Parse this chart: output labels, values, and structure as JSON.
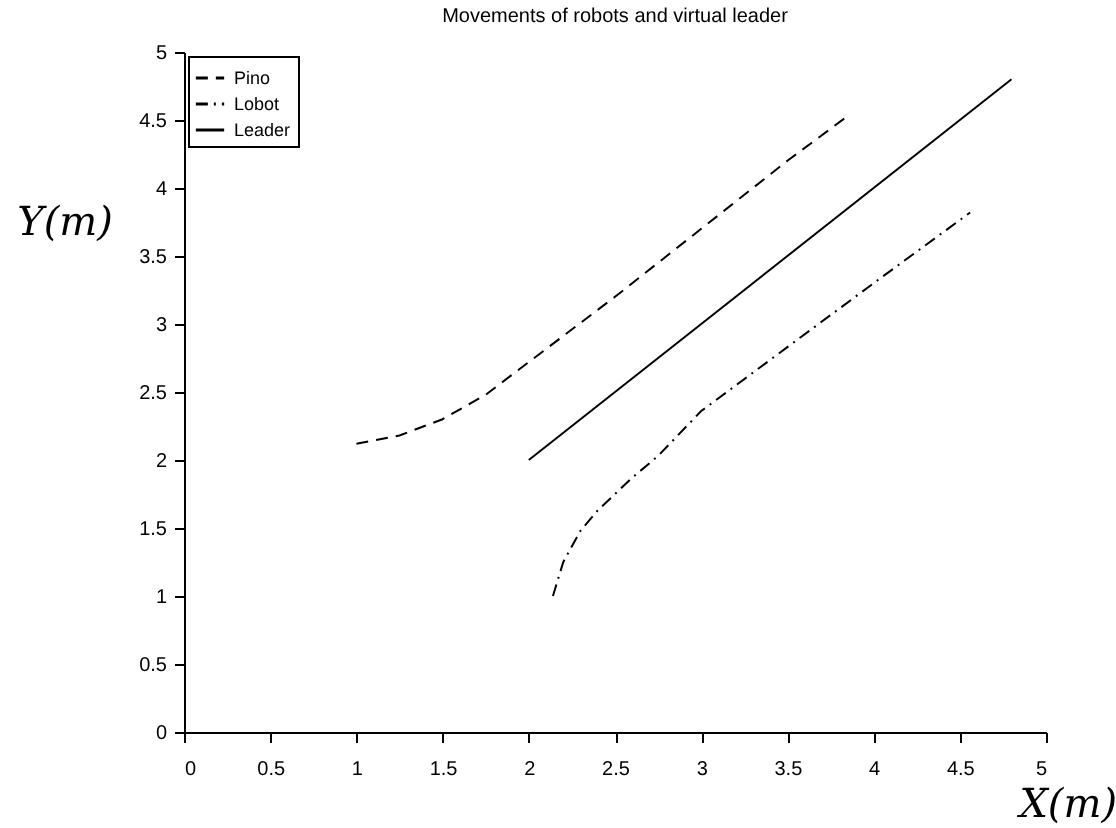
{
  "chart_data": {
    "type": "line",
    "title": "Movements of  robots and virtual leader",
    "xlabel": "X(m)",
    "ylabel": "Y(m)",
    "xlim": [
      0,
      5
    ],
    "ylim": [
      0,
      5
    ],
    "xticks": [
      0,
      0.5,
      1,
      1.5,
      2,
      2.5,
      3,
      3.5,
      4,
      4.5,
      5
    ],
    "yticks": [
      0,
      0.5,
      1,
      1.5,
      2,
      2.5,
      3,
      3.5,
      4,
      4.5,
      5
    ],
    "grid": false,
    "legend": "top left",
    "marker": "none",
    "series": [
      {
        "name": "Pino",
        "color": "#000000",
        "line_style": "dashed",
        "x": [
          1.0,
          1.25,
          1.5,
          1.75,
          2.0,
          2.5,
          3.0,
          3.5,
          3.84
        ],
        "values": [
          2.12,
          2.18,
          2.3,
          2.48,
          2.72,
          3.2,
          3.7,
          4.2,
          4.52
        ]
      },
      {
        "name": "Lobot",
        "color": "#000000",
        "line_style": "dashdot",
        "x": [
          2.14,
          2.2,
          2.3,
          2.4,
          2.5,
          2.6,
          2.75,
          3.0,
          3.5,
          4.0,
          4.56
        ],
        "values": [
          1.0,
          1.25,
          1.48,
          1.63,
          1.75,
          1.87,
          2.03,
          2.36,
          2.83,
          3.3,
          3.82
        ]
      },
      {
        "name": "Leader",
        "color": "#000000",
        "line_style": "solid",
        "x": [
          2.0,
          4.8
        ],
        "values": [
          2.0,
          4.8
        ]
      }
    ]
  }
}
